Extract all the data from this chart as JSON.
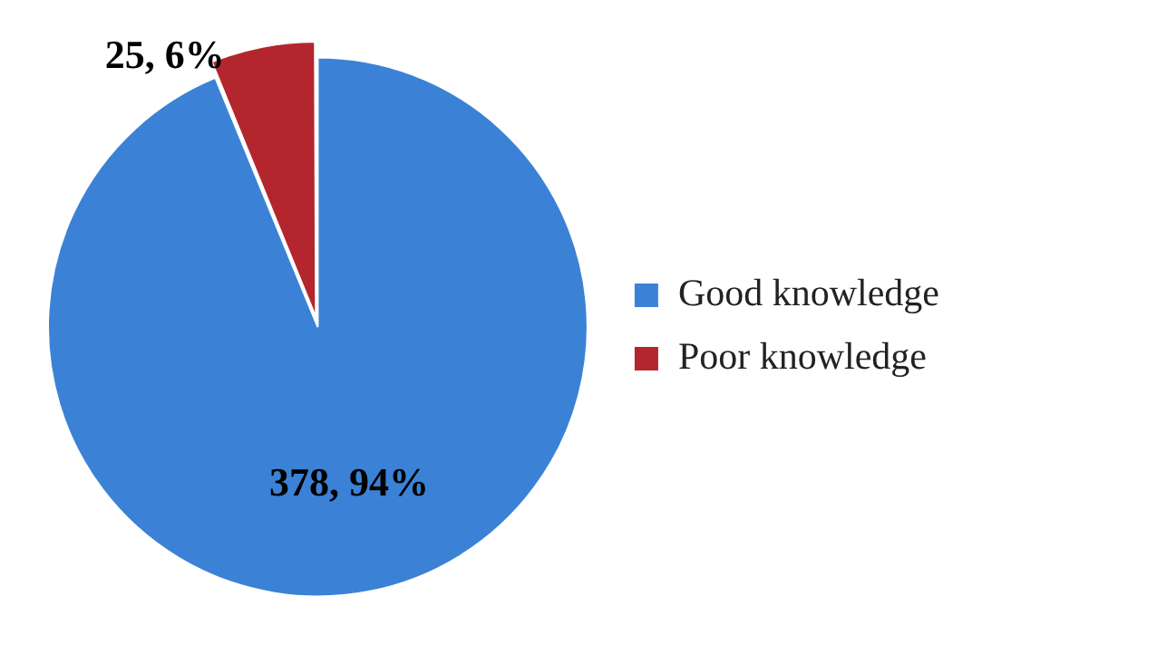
{
  "chart_data": {
    "type": "pie",
    "categories": [
      "Good knowledge",
      "Poor knowledge"
    ],
    "values": [
      378,
      25
    ],
    "colors": [
      "#3b82d6",
      "#b3262e"
    ],
    "value_labels": [
      "378, 94%",
      "25, 6%"
    ],
    "legend": "right"
  }
}
